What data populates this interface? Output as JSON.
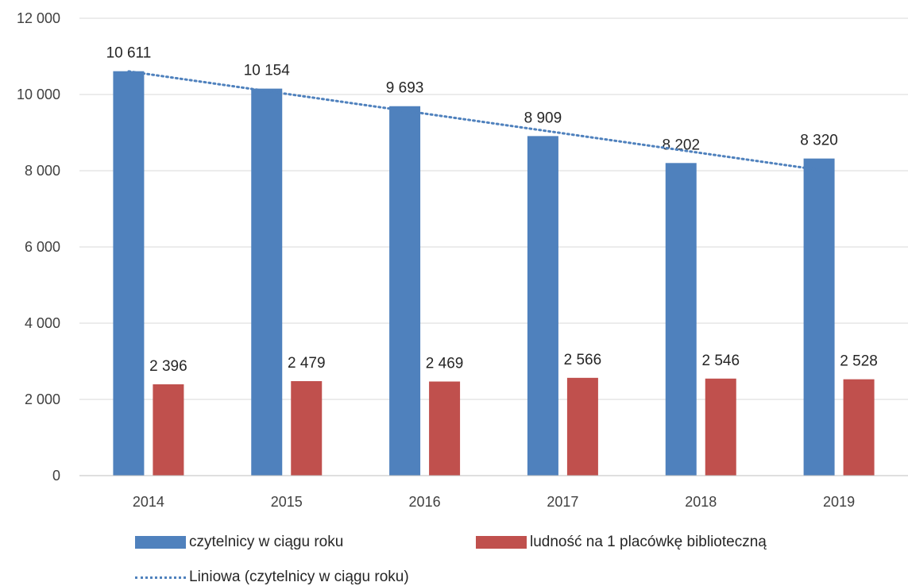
{
  "chart_data": {
    "type": "bar",
    "categories": [
      "2014",
      "2015",
      "2016",
      "2017",
      "2018",
      "2019"
    ],
    "series": [
      {
        "name": "czytelnicy w ciągu roku",
        "color": "#4f81bd",
        "values": [
          10611,
          10154,
          9693,
          8909,
          8202,
          8320
        ],
        "labels": [
          "10 611",
          "10 154",
          "9 693",
          "8 909",
          "8 202",
          "8 320"
        ]
      },
      {
        "name": "ludność na 1 placówkę biblioteczną",
        "color": "#c0504d",
        "values": [
          2396,
          2479,
          2469,
          2566,
          2546,
          2528
        ],
        "labels": [
          "2 396",
          "2 479",
          "2 469",
          "2 566",
          "2 546",
          "2 528"
        ]
      }
    ],
    "trendline": {
      "name": "Liniowa (czytelnicy w ciągu roku)",
      "of_series": "czytelnicy w ciągu roku",
      "type": "linear",
      "style": "dotted",
      "color": "#4f81bd"
    },
    "ylim": [
      0,
      12000
    ],
    "y_ticks": [
      0,
      2000,
      4000,
      6000,
      8000,
      10000,
      12000
    ],
    "y_tick_labels": [
      "0",
      "2 000",
      "4 000",
      "6 000",
      "8 000",
      "10 000",
      "12 000"
    ],
    "grid": true,
    "legend_position": "bottom",
    "title": "",
    "xlabel": "",
    "ylabel": ""
  }
}
